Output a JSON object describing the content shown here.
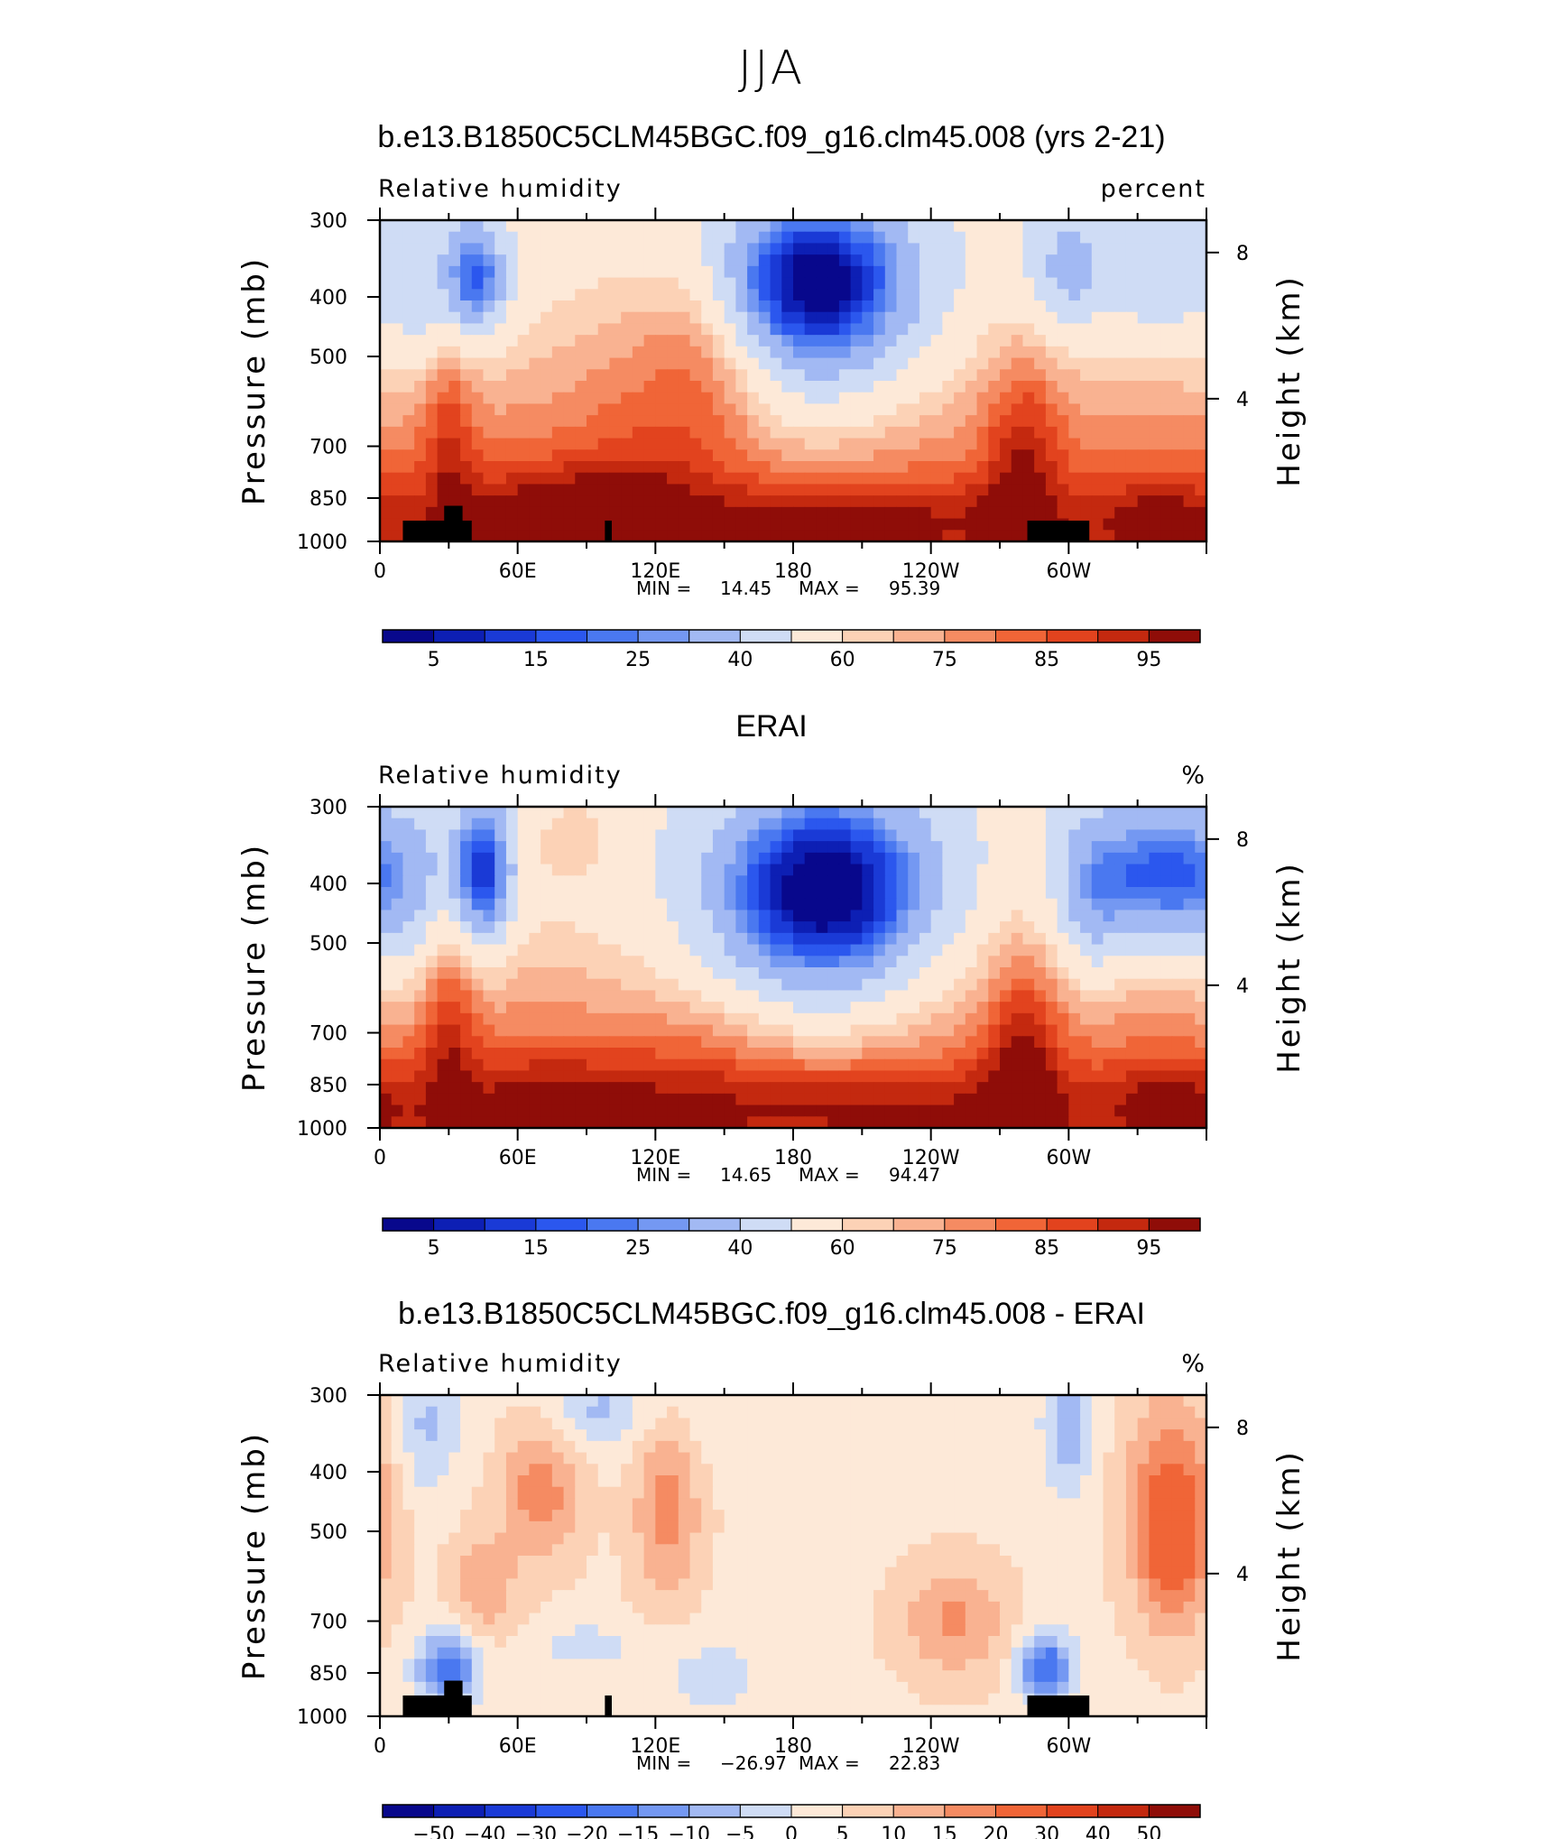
{
  "title": "JJA",
  "panels": [
    {
      "title": "b.e13.B1850C5CLM45BGC.f09_g16.clm45.008 (yrs 2-21)",
      "variable": "Relative humidity",
      "units": "percent",
      "min_label": "MIN =",
      "min_value": "14.45",
      "max_label": "MAX =",
      "max_value": "95.39",
      "masked_terrain": true
    },
    {
      "title": "ERAI",
      "variable": "Relative humidity",
      "units": "%",
      "min_label": "MIN =",
      "min_value": "14.65",
      "max_label": "MAX =",
      "max_value": "94.47",
      "masked_terrain": false
    },
    {
      "title": "b.e13.B1850C5CLM45BGC.f09_g16.clm45.008 - ERAI",
      "variable": "Relative humidity",
      "units": "%",
      "min_label": "MIN =",
      "min_value": "−26.97",
      "max_label": "MAX =",
      "max_value": "22.83",
      "masked_terrain": true
    }
  ],
  "chart_data": [
    {
      "type": "heatmap",
      "subtype": "filled contour (longitude-pressure cross section)",
      "title": "b.e13.B1850C5CLM45BGC.f09_g16.clm45.008 (yrs 2-21)",
      "x_ticks": [
        "0",
        "60E",
        "120E",
        "180",
        "120W",
        "60W"
      ],
      "x_range_deg": [
        0,
        360
      ],
      "y_left_label": "Pressure (mb)",
      "y_left_ticks": [
        "300",
        "400",
        "500",
        "700",
        "850",
        "1000"
      ],
      "y_left_scale": "log",
      "y_right_label": "Height (km)",
      "y_right_ticks": [
        "8",
        "4"
      ],
      "colorbar_ticks": [
        "5",
        "15",
        "25",
        "40",
        "60",
        "75",
        "85",
        "95"
      ],
      "colorbar_levels": [
        5,
        10,
        15,
        20,
        25,
        30,
        40,
        50,
        60,
        65,
        70,
        75,
        80,
        85,
        90,
        95
      ],
      "min": 14.45,
      "max": 95.39
    },
    {
      "type": "heatmap",
      "subtype": "filled contour (longitude-pressure cross section)",
      "title": "ERAI",
      "x_ticks": [
        "0",
        "60E",
        "120E",
        "180",
        "120W",
        "60W"
      ],
      "x_range_deg": [
        0,
        360
      ],
      "y_left_label": "Pressure (mb)",
      "y_left_ticks": [
        "300",
        "400",
        "500",
        "700",
        "850",
        "1000"
      ],
      "y_left_scale": "log",
      "y_right_label": "Height (km)",
      "y_right_ticks": [
        "8",
        "4"
      ],
      "colorbar_ticks": [
        "5",
        "15",
        "25",
        "40",
        "60",
        "75",
        "85",
        "95"
      ],
      "colorbar_levels": [
        5,
        10,
        15,
        20,
        25,
        30,
        40,
        50,
        60,
        65,
        70,
        75,
        80,
        85,
        90,
        95
      ],
      "min": 14.65,
      "max": 94.47
    },
    {
      "type": "heatmap",
      "subtype": "filled contour (longitude-pressure cross section)",
      "title": "b.e13.B1850C5CLM45BGC.f09_g16.clm45.008 - ERAI",
      "x_ticks": [
        "0",
        "60E",
        "120E",
        "180",
        "120W",
        "60W"
      ],
      "x_range_deg": [
        0,
        360
      ],
      "y_left_label": "Pressure (mb)",
      "y_left_ticks": [
        "300",
        "400",
        "500",
        "700",
        "850",
        "1000"
      ],
      "y_left_scale": "log",
      "y_right_label": "Height (km)",
      "y_right_ticks": [
        "8",
        "4"
      ],
      "colorbar_ticks": [
        "−50",
        "−40",
        "−30",
        "−20",
        "−15",
        "−10",
        "−5",
        "0",
        "5",
        "10",
        "15",
        "20",
        "30",
        "40",
        "50"
      ],
      "colorbar_levels": [
        -50,
        -40,
        -30,
        -20,
        -15,
        -10,
        -5,
        0,
        5,
        10,
        15,
        20,
        30,
        40,
        50
      ],
      "min": -26.97,
      "max": 22.83
    }
  ],
  "colors": {
    "palette": [
      "#08088c",
      "#0d1fb4",
      "#1a3ad6",
      "#2b57ee",
      "#4a78f0",
      "#7498f2",
      "#a2b9f3",
      "#cfdcf5",
      "#fde9d8",
      "#fcd2b6",
      "#f9b291",
      "#f58b62",
      "#f06537",
      "#e2431e",
      "#c4290f",
      "#8f0d08"
    ],
    "terrain": "#000000",
    "axis": "#000000"
  }
}
